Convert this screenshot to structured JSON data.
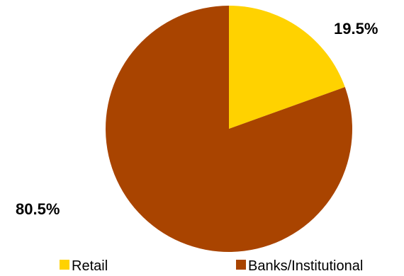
{
  "chart_data": {
    "type": "pie",
    "title": "",
    "slices": [
      {
        "label": "Retail",
        "value": 19.5,
        "display": "19.5%",
        "color": "#FFD200"
      },
      {
        "label": "Banks/Institutional",
        "value": 80.5,
        "display": "80.5%",
        "color": "#A94400"
      }
    ],
    "start_angle_deg": 0,
    "direction": "clockwise",
    "legend": {
      "position": "bottom",
      "items": [
        "Retail",
        "Banks/Institutional"
      ]
    }
  }
}
